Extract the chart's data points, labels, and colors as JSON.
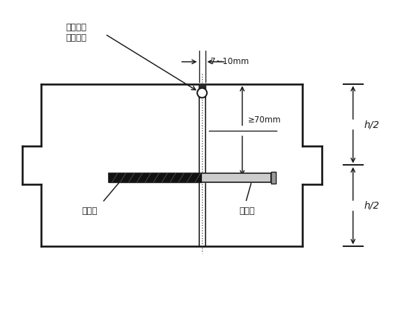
{
  "bg_color": "#ffffff",
  "line_color": "#1a1a1a",
  "fig_width": 6.0,
  "fig_height": 4.5,
  "dpi": 100,
  "labels": {
    "pour_material_line1": "灌填缝料",
    "pour_material_line2": "背衬垫条",
    "gap_dim": "7~10mm",
    "depth_dim": "≥70mm",
    "asphalt": "涂沥青",
    "dowel_bar": "传力杆",
    "h2_top": "h/2",
    "h2_bot": "h/2"
  }
}
